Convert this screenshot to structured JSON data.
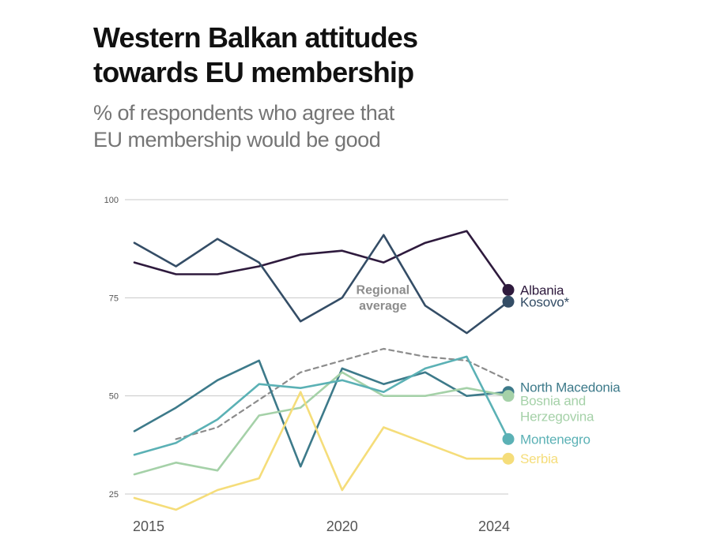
{
  "title_lines": [
    "Western Balkan attitudes",
    "towards EU membership"
  ],
  "subtitle_lines": [
    "% of respondents who agree that",
    "EU membership would be good"
  ],
  "chart_data": {
    "type": "line",
    "title": "Western Balkan attitudes towards EU membership",
    "subtitle": "% of respondents who agree that EU membership would be good",
    "xlabel": "",
    "ylabel": "",
    "x": [
      2015,
      2016,
      2017,
      2018,
      2019,
      2020,
      2021,
      2022,
      2023,
      2024
    ],
    "xlim": [
      2015,
      2024
    ],
    "ylim": [
      25,
      100
    ],
    "yticks": [
      25,
      50,
      75,
      100
    ],
    "xticks": [
      2015,
      2020,
      2024
    ],
    "grid": "horizontal",
    "annotation": {
      "line1": "Regional",
      "line2": "average",
      "x": 2021,
      "y": 77,
      "color": "#8c8c8c"
    },
    "series": [
      {
        "name": "Albania",
        "label_lines": [
          "Albania"
        ],
        "color": "#2e1a3d",
        "dashed": false,
        "values": [
          84,
          81,
          81,
          83,
          86,
          87,
          84,
          89,
          92,
          77
        ]
      },
      {
        "name": "Kosovo*",
        "label_lines": [
          "Kosovo*"
        ],
        "color": "#344d66",
        "dashed": false,
        "values": [
          89,
          83,
          90,
          84,
          69,
          75,
          91,
          73,
          66,
          74
        ]
      },
      {
        "name": "Regional average",
        "label_lines": [],
        "color": "#8c8c8c",
        "dashed": true,
        "values": [
          null,
          39,
          42,
          49,
          56,
          59,
          62,
          60,
          59,
          54
        ]
      },
      {
        "name": "North Macedonia",
        "label_lines": [
          "North Macedonia"
        ],
        "color": "#3d7a8a",
        "dashed": false,
        "values": [
          41,
          47,
          54,
          59,
          32,
          57,
          53,
          56,
          50,
          51
        ]
      },
      {
        "name": "Bosnia and Herzegovina",
        "label_lines": [
          "Bosnia and",
          "Herzegovina"
        ],
        "color": "#a5d1a8",
        "dashed": false,
        "values": [
          30,
          33,
          31,
          45,
          47,
          56,
          50,
          50,
          52,
          50
        ]
      },
      {
        "name": "Montenegro",
        "label_lines": [
          "Montenegro"
        ],
        "color": "#5bb1b5",
        "dashed": false,
        "values": [
          35,
          38,
          44,
          53,
          52,
          54,
          51,
          57,
          60,
          39
        ]
      },
      {
        "name": "Serbia",
        "label_lines": [
          "Serbia"
        ],
        "color": "#f5dd7a",
        "dashed": false,
        "values": [
          24,
          21,
          26,
          29,
          51,
          26,
          42,
          38,
          34,
          34
        ]
      }
    ]
  }
}
